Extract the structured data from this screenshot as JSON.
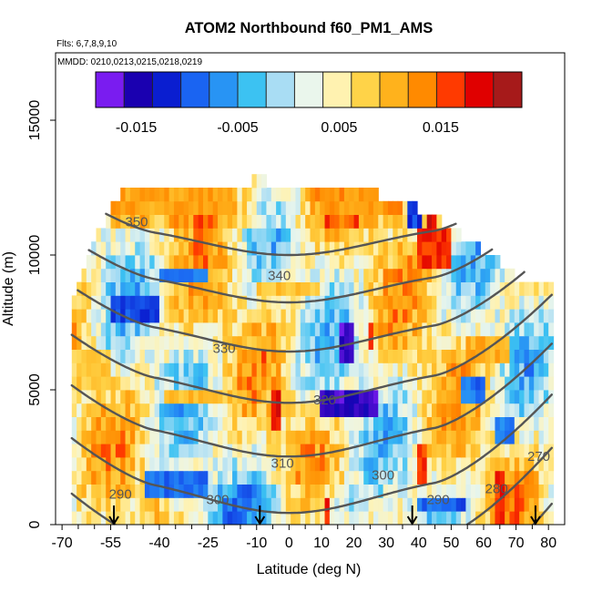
{
  "figure": {
    "title": "ATOM2 Northbound f60_PM1_AMS",
    "flights_note": "Flts: 6,7,8,9,10",
    "dates_note": "MMDD: 0210,0213,0215,0218,0219"
  },
  "chart_data": {
    "type": "heatmap",
    "title": "ATOM2 Northbound f60_PM1_AMS",
    "xlabel": "Latitude (deg N)",
    "ylabel": "Altitude (m)",
    "xlim": [
      -72,
      85
    ],
    "ylim": [
      0,
      17500
    ],
    "x_ticks": [
      -70,
      -55,
      -40,
      -25,
      -10,
      0,
      10,
      20,
      30,
      40,
      50,
      60,
      70,
      80
    ],
    "x_minor_ticks": [
      -65,
      -60,
      -50,
      -45,
      -35,
      -30,
      -20,
      -15,
      -5,
      5,
      15,
      25,
      35,
      45,
      55,
      65,
      75
    ],
    "y_ticks": [
      0,
      5000,
      10000,
      15000
    ],
    "colorbar": {
      "range": [
        -0.019,
        0.023
      ],
      "ticks": [
        -0.015,
        -0.005,
        0.005,
        0.015
      ],
      "tick_labels": [
        "-0.015",
        "-0.005",
        "0.005",
        "0.015"
      ],
      "colors": [
        "#7a1cf0",
        "#1a00b0",
        "#0a1ed0",
        "#1a64f2",
        "#2894f4",
        "#3cc2f2",
        "#a9ddf4",
        "#eaf6ec",
        "#fff2b0",
        "#ffd348",
        "#ffb21c",
        "#ff8a00",
        "#ff3a00",
        "#e00000",
        "#a61a1a"
      ]
    },
    "contour_levels": [
      270,
      280,
      290,
      300,
      310,
      320,
      330,
      340,
      350
    ],
    "contour_labels": [
      {
        "text": "350",
        "lat": -47,
        "alt": 11200
      },
      {
        "text": "340",
        "lat": -3,
        "alt": 9200
      },
      {
        "text": "330",
        "lat": -20,
        "alt": 6500
      },
      {
        "text": "320",
        "lat": 11,
        "alt": 4600
      },
      {
        "text": "310",
        "lat": -2,
        "alt": 2250
      },
      {
        "text": "300",
        "lat": -22,
        "alt": 900
      },
      {
        "text": "300",
        "lat": 29,
        "alt": 1800
      },
      {
        "text": "290",
        "lat": -52,
        "alt": 1100
      },
      {
        "text": "290",
        "lat": 46,
        "alt": 900
      },
      {
        "text": "280",
        "lat": 64,
        "alt": 1300
      },
      {
        "text": "270",
        "lat": 77,
        "alt": 2500
      }
    ],
    "flight_markers_lat": [
      -54,
      -9,
      38,
      76
    ],
    "curtain_top_alt": [
      [
        -67,
        8000
      ],
      [
        -62,
        9800
      ],
      [
        -58,
        11000
      ],
      [
        -52,
        12400
      ],
      [
        -40,
        12500
      ],
      [
        -20,
        12500
      ],
      [
        -10,
        12800
      ],
      [
        0,
        12600
      ],
      [
        10,
        12400
      ],
      [
        20,
        12400
      ],
      [
        30,
        12200
      ],
      [
        40,
        11700
      ],
      [
        50,
        11000
      ],
      [
        60,
        10200
      ],
      [
        70,
        9200
      ],
      [
        80,
        9000
      ]
    ],
    "cold_spots": [
      {
        "lat": [
          10,
          28
        ],
        "alt": [
          3900,
          5200
        ],
        "value": -0.017
      },
      {
        "lat": [
          16,
          20
        ],
        "alt": [
          6000,
          7300
        ],
        "value": -0.018
      },
      {
        "lat": [
          36,
          41
        ],
        "alt": [
          11000,
          12000
        ],
        "value": -0.012
      },
      {
        "lat": [
          -55,
          -40
        ],
        "alt": [
          7500,
          8300
        ],
        "value": -0.011
      },
      {
        "lat": [
          -40,
          -25
        ],
        "alt": [
          9000,
          9600
        ],
        "value": -0.008
      },
      {
        "lat": [
          53,
          60
        ],
        "alt": [
          4500,
          5500
        ],
        "value": -0.009
      },
      {
        "lat": [
          40,
          55
        ],
        "alt": [
          300,
          1000
        ],
        "value": -0.01
      },
      {
        "lat": [
          -45,
          -25
        ],
        "alt": [
          1200,
          1800
        ],
        "value": -0.009
      },
      {
        "lat": [
          72,
          76
        ],
        "alt": [
          5500,
          6200
        ],
        "value": -0.011
      },
      {
        "lat": [
          63,
          70
        ],
        "alt": [
          3000,
          3800
        ],
        "value": -0.008
      }
    ],
    "warm_spots": [
      {
        "lat": [
          -60,
          -20
        ],
        "alt": [
          11500,
          12500
        ],
        "value": 0.012
      },
      {
        "lat": [
          10,
          35
        ],
        "alt": [
          11500,
          12500
        ],
        "value": 0.013
      },
      {
        "lat": [
          40,
          50
        ],
        "alt": [
          9700,
          10800
        ],
        "value": 0.018
      },
      {
        "lat": [
          42,
          45
        ],
        "alt": [
          10700,
          12300
        ],
        "value": 0.02
      },
      {
        "lat": [
          24,
          26
        ],
        "alt": [
          6400,
          7700
        ],
        "value": 0.019
      },
      {
        "lat": [
          -6,
          -3
        ],
        "alt": [
          3700,
          5000
        ],
        "value": 0.019
      },
      {
        "lat": [
          11,
          13
        ],
        "alt": [
          0,
          800
        ],
        "value": 0.018
      },
      {
        "lat": [
          39,
          43
        ],
        "alt": [
          1500,
          3200
        ],
        "value": 0.017
      },
      {
        "lat": [
          63,
          66
        ],
        "alt": [
          200,
          2000
        ],
        "value": 0.018
      },
      {
        "lat": [
          -38,
          -20
        ],
        "alt": [
          4300,
          5000
        ],
        "value": 0.01
      },
      {
        "lat": [
          55,
          68
        ],
        "alt": [
          6000,
          7200
        ],
        "value": 0.011
      },
      {
        "lat": [
          -10,
          10
        ],
        "alt": [
          8300,
          9200
        ],
        "value": 0.009
      },
      {
        "lat": [
          -65,
          -55
        ],
        "alt": [
          5000,
          6500
        ],
        "value": 0.009
      }
    ]
  }
}
